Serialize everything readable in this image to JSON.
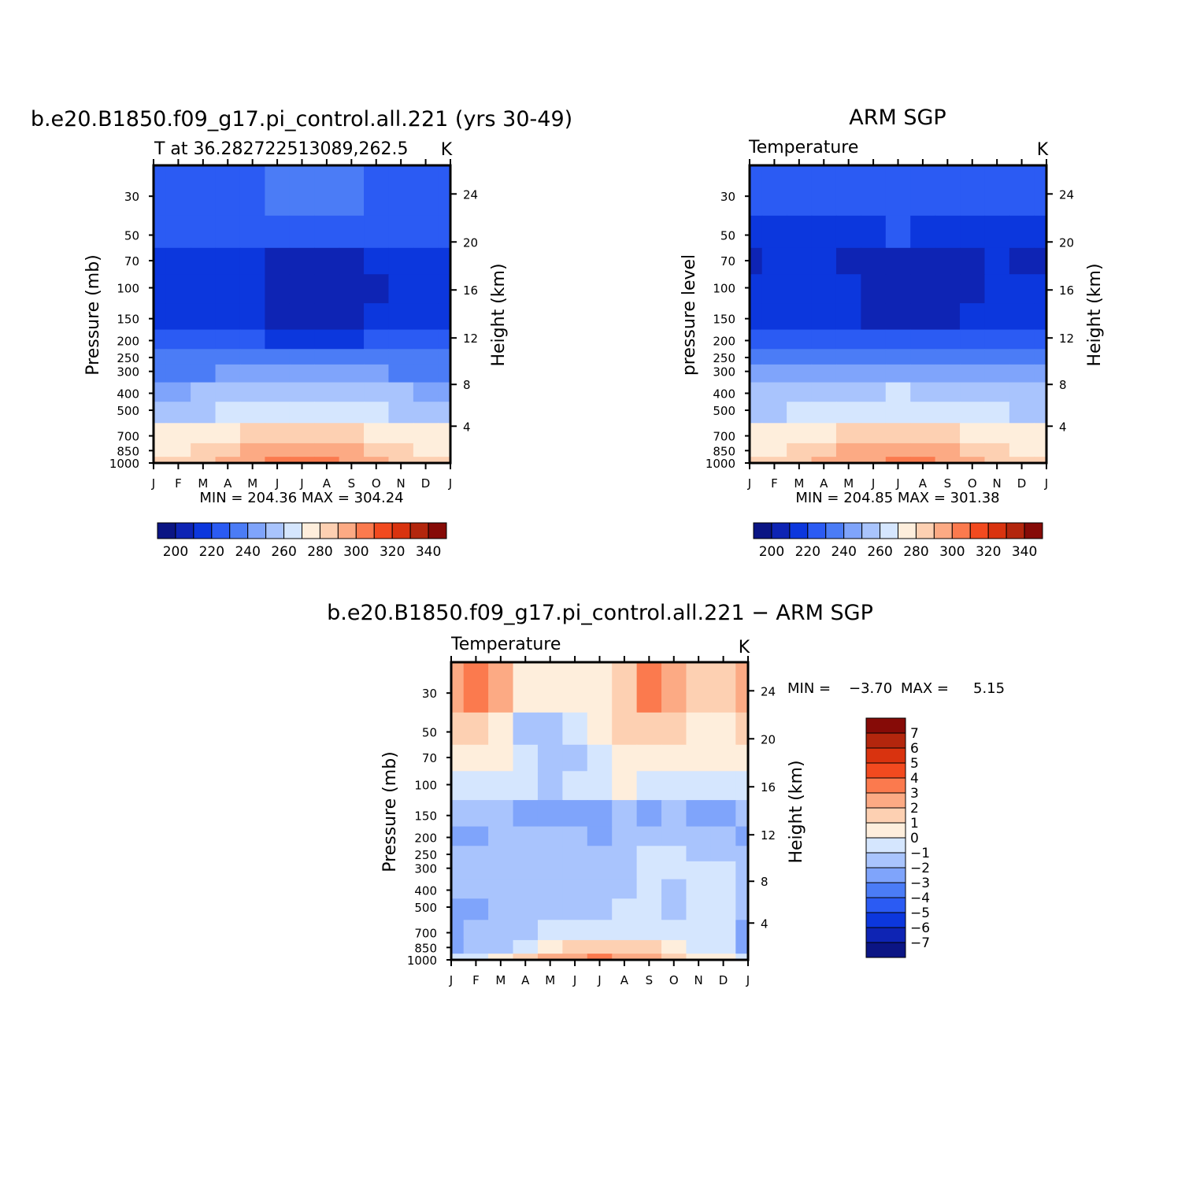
{
  "colors": {
    "temperature_scale": [
      "#0b1584",
      "#0e24b4",
      "#0c37dd",
      "#2b5bf3",
      "#4b7cf6",
      "#7fa4fb",
      "#a9c4fd",
      "#d5e6fe",
      "#feeedc",
      "#fdd0b2",
      "#fcaa84",
      "#fb7a4e",
      "#f24a1f",
      "#d9330f",
      "#b3260d",
      "#860b07"
    ],
    "anomaly_scale": [
      "#0b1584",
      "#0e24b4",
      "#0c37dd",
      "#2b5bf3",
      "#4b7cf6",
      "#7fa4fb",
      "#a9c4fd",
      "#d5e6fe",
      "#feeedc",
      "#fdd0b2",
      "#fcaa84",
      "#fb7a4e",
      "#f24a1f",
      "#d9330f",
      "#b3260d",
      "#860b07"
    ]
  },
  "chart_data": [
    {
      "type": "heatmap",
      "title": "b.e20.B1850.f09_g17.pi_control.all.221 (yrs 30-49)",
      "subtitle": "T at 36.282722513089,262.5",
      "units": "K",
      "xlabel": "",
      "ylabel": "Pressure (mb)",
      "ylabel_right": "Height (km)",
      "x_ticks": [
        "J",
        "F",
        "M",
        "A",
        "M",
        "J",
        "J",
        "A",
        "S",
        "O",
        "N",
        "D",
        "J"
      ],
      "y_ticks": [
        "30",
        "50",
        "70",
        "100",
        "150",
        "200",
        "250",
        "300",
        "400",
        "500",
        "700",
        "850",
        "1000"
      ],
      "y_ticks_right": [
        "24",
        "20",
        "16",
        "12",
        "8",
        "4"
      ],
      "stats": "MIN = 204.36 MAX = 304.24",
      "min": 204.36,
      "max": 304.24,
      "colorbar_labels": [
        "200",
        "220",
        "240",
        "260",
        "280",
        "300",
        "320",
        "340"
      ],
      "colorbar_range": [
        190,
        350
      ],
      "bands_month_level": {
        "30": [
          225,
          225,
          225,
          226,
          228,
          230,
          231,
          231,
          230,
          227,
          225,
          225,
          225
        ],
        "50": [
          220,
          220,
          220,
          220,
          221,
          221,
          222,
          222,
          221,
          220,
          220,
          220,
          220
        ],
        "70": [
          210,
          213,
          213,
          213,
          210,
          208,
          208,
          208,
          208,
          210,
          210,
          210,
          210
        ],
        "100": [
          215,
          216,
          216,
          215,
          210,
          208,
          208,
          208,
          208,
          209,
          212,
          214,
          215
        ],
        "150": [
          216,
          216,
          216,
          216,
          210,
          208,
          208,
          208,
          208,
          210,
          213,
          215,
          216
        ],
        "200": [
          222,
          222,
          222,
          222,
          220,
          219,
          218,
          218,
          219,
          220,
          221,
          222,
          222
        ],
        "250": [
          230,
          230,
          231,
          232,
          234,
          236,
          236,
          236,
          235,
          233,
          231,
          230,
          230
        ],
        "300": [
          238,
          238,
          239,
          241,
          243,
          245,
          246,
          246,
          244,
          241,
          239,
          238,
          238
        ],
        "400": [
          249,
          249,
          251,
          253,
          256,
          258,
          259,
          259,
          257,
          254,
          251,
          249,
          249
        ],
        "500": [
          257,
          257,
          259,
          262,
          265,
          268,
          269,
          269,
          267,
          263,
          259,
          257,
          257
        ],
        "700": [
          270,
          270,
          273,
          276,
          280,
          283,
          285,
          284,
          282,
          277,
          273,
          270,
          270
        ],
        "850": [
          278,
          278,
          282,
          286,
          291,
          295,
          297,
          296,
          293,
          287,
          282,
          278,
          278
        ],
        "1000": [
          283,
          284,
          288,
          293,
          298,
          302,
          304,
          303,
          299,
          292,
          287,
          283,
          283
        ]
      }
    },
    {
      "type": "heatmap",
      "title": "ARM SGP",
      "subtitle": "Temperature",
      "units": "K",
      "xlabel": "",
      "ylabel": "pressure level",
      "ylabel_right": "Height (km)",
      "x_ticks": [
        "J",
        "F",
        "M",
        "A",
        "M",
        "J",
        "J",
        "A",
        "S",
        "O",
        "N",
        "D",
        "J"
      ],
      "y_ticks": [
        "30",
        "50",
        "70",
        "100",
        "150",
        "200",
        "250",
        "300",
        "400",
        "500",
        "700",
        "850",
        "1000"
      ],
      "y_ticks_right": [
        "24",
        "20",
        "16",
        "12",
        "8",
        "4"
      ],
      "stats": "MIN = 204.85 MAX = 301.38",
      "min": 204.85,
      "max": 301.38,
      "colorbar_labels": [
        "200",
        "220",
        "240",
        "260",
        "280",
        "300",
        "320",
        "340"
      ],
      "colorbar_range": [
        190,
        350
      ],
      "bands_month_level": {
        "30": [
          222,
          222,
          222,
          223,
          225,
          227,
          228,
          227,
          226,
          224,
          222,
          222,
          222
        ],
        "50": [
          215,
          216,
          217,
          218,
          219,
          219,
          220,
          219,
          219,
          218,
          217,
          216,
          215
        ],
        "70": [
          208,
          212,
          210,
          210,
          209,
          208,
          208,
          208,
          208,
          209,
          210,
          209,
          208
        ],
        "100": [
          214,
          214,
          214,
          214,
          210,
          207,
          206,
          206,
          207,
          209,
          211,
          214,
          214
        ],
        "150": [
          218,
          218,
          218,
          217,
          213,
          209,
          208,
          208,
          209,
          212,
          216,
          218,
          218
        ],
        "200": [
          226,
          226,
          226,
          225,
          223,
          221,
          220,
          220,
          221,
          223,
          225,
          226,
          226
        ],
        "250": [
          233,
          233,
          233,
          234,
          236,
          237,
          238,
          238,
          237,
          235,
          234,
          233,
          233
        ],
        "300": [
          240,
          240,
          241,
          243,
          245,
          246,
          247,
          247,
          246,
          243,
          241,
          240,
          240
        ],
        "400": [
          251,
          251,
          253,
          255,
          257,
          259,
          260,
          259,
          258,
          255,
          253,
          251,
          251
        ],
        "500": [
          259,
          259,
          261,
          264,
          266,
          268,
          269,
          268,
          267,
          264,
          261,
          259,
          259
        ],
        "700": [
          271,
          271,
          274,
          277,
          280,
          283,
          284,
          283,
          281,
          277,
          274,
          271,
          271
        ],
        "850": [
          279,
          279,
          282,
          286,
          290,
          294,
          295,
          294,
          292,
          287,
          282,
          279,
          279
        ],
        "1000": [
          284,
          284,
          287,
          291,
          296,
          299,
          301,
          300,
          297,
          291,
          287,
          284,
          284
        ]
      }
    },
    {
      "type": "heatmap",
      "title": "b.e20.B1850.f09_g17.pi_control.all.221 − ARM SGP",
      "subtitle": "Temperature",
      "units": "K",
      "xlabel": "",
      "ylabel": "Pressure (mb)",
      "ylabel_right": "Height (km)",
      "x_ticks": [
        "J",
        "F",
        "M",
        "A",
        "M",
        "J",
        "J",
        "A",
        "S",
        "O",
        "N",
        "D",
        "J"
      ],
      "y_ticks": [
        "30",
        "50",
        "70",
        "100",
        "150",
        "200",
        "250",
        "300",
        "400",
        "500",
        "700",
        "850",
        "1000"
      ],
      "y_ticks_right": [
        "24",
        "20",
        "16",
        "12",
        "8",
        "4"
      ],
      "stats_label_min": "MIN =",
      "stats_value_min": "−3.70",
      "stats_label_max": "MAX =",
      "stats_value_max": "5.15",
      "min": -3.7,
      "max": 5.15,
      "colorbar_labels": [
        "7",
        "6",
        "5",
        "4",
        "3",
        "2",
        "1",
        "0",
        "−1",
        "−2",
        "−3",
        "−4",
        "−5",
        "−6",
        "−7"
      ],
      "colorbar_range": [
        -8,
        8
      ],
      "bands_month_level": {
        "30": [
          2.5,
          3.2,
          2.0,
          0.5,
          0.3,
          0.5,
          0.8,
          1.5,
          3.0,
          2.0,
          1.5,
          1.5,
          2.5
        ],
        "50": [
          1.5,
          1.0,
          0.4,
          -1.2,
          -1.5,
          -0.5,
          0.5,
          1.0,
          1.5,
          1.0,
          0.8,
          0.8,
          1.5
        ],
        "70": [
          0.6,
          0.3,
          0.3,
          -1.0,
          -1.5,
          -1.2,
          -0.3,
          0.3,
          0.5,
          0.5,
          0.3,
          0.3,
          0.6
        ],
        "100": [
          -0.5,
          -0.5,
          -0.5,
          -1.0,
          -1.5,
          -1.0,
          -0.5,
          0.3,
          -0.5,
          -0.8,
          -0.5,
          -0.5,
          -0.5
        ],
        "150": [
          -1.5,
          -1.5,
          -1.6,
          -2.5,
          -2.8,
          -2.5,
          -2.2,
          -2.0,
          -2.5,
          -2.0,
          -2.5,
          -2.5,
          -1.5
        ],
        "200": [
          -2.5,
          -2.2,
          -2.0,
          -1.5,
          -1.8,
          -2.0,
          -2.2,
          -2.0,
          -2.0,
          -1.5,
          -2.0,
          -2.0,
          -2.5
        ],
        "250": [
          -2.0,
          -1.8,
          -1.2,
          -1.5,
          -1.8,
          -1.8,
          -1.5,
          -1.2,
          -1.0,
          -0.8,
          -1.2,
          -1.5,
          -2.0
        ],
        "300": [
          -1.5,
          -1.5,
          -1.5,
          -1.5,
          -1.5,
          -1.5,
          -1.4,
          -1.2,
          -0.8,
          -1.0,
          -0.5,
          -0.8,
          -1.5
        ],
        "400": [
          -1.6,
          -1.5,
          -1.5,
          -1.5,
          -1.5,
          -1.5,
          -1.4,
          -1.2,
          -0.8,
          -1.2,
          -0.5,
          -0.8,
          -1.6
        ],
        "500": [
          -2.3,
          -2.2,
          -1.5,
          -1.5,
          -1.5,
          -1.4,
          -1.3,
          -0.8,
          -0.8,
          -1.2,
          -0.5,
          -0.8,
          -1.6
        ],
        "700": [
          -2.2,
          -2.0,
          -1.6,
          -1.2,
          -0.9,
          -0.6,
          -0.4,
          -0.5,
          -0.7,
          -0.8,
          -0.8,
          -1.0,
          -2.2
        ],
        "850": [
          -2.3,
          -2.0,
          -1.5,
          -0.8,
          0.5,
          1.0,
          1.5,
          1.2,
          1.0,
          0.3,
          -0.5,
          -0.8,
          -2.3
        ],
        "1000": [
          -0.8,
          -0.5,
          0.2,
          1.5,
          2.0,
          2.8,
          3.0,
          2.8,
          2.5,
          1.5,
          0.8,
          0.3,
          -0.8
        ]
      }
    }
  ]
}
